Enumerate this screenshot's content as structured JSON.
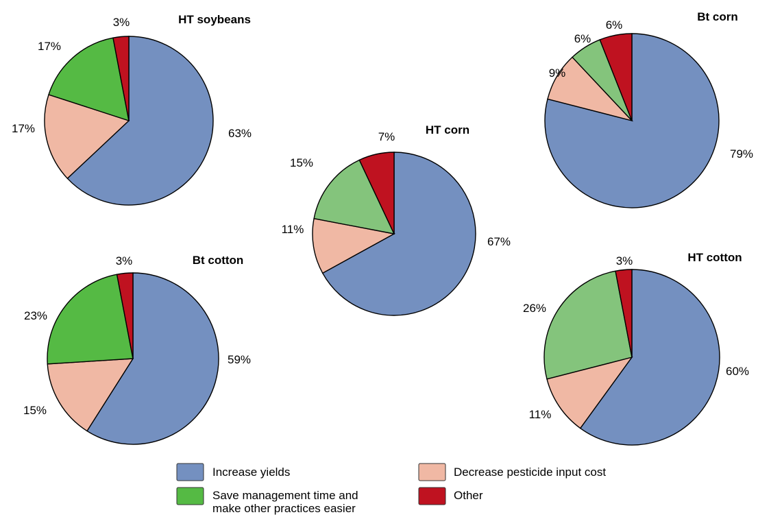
{
  "chart_data": {
    "type": "pie",
    "categories": [
      "Increase yields",
      "Decrease pesticide input cost",
      "Save management time and make other practices easier",
      "Other"
    ],
    "colors": {
      "increase_yields": "#7490c0",
      "decrease_pesticide": "#f0b8a4",
      "save_time_dark": "#55ba44",
      "save_time_light": "#84c47c",
      "other": "#bf1220"
    },
    "legend": {
      "placement": "bottom",
      "items": [
        {
          "key": "increase_yields",
          "label_lines": [
            "Increase yields"
          ]
        },
        {
          "key": "decrease_pesticide",
          "label_lines": [
            "Decrease pesticide input cost"
          ]
        },
        {
          "key": "save_time_dark",
          "label_lines": [
            "Save management time and",
            "make other practices easier"
          ]
        },
        {
          "key": "other",
          "label_lines": [
            "Other"
          ]
        }
      ]
    },
    "pies": [
      {
        "title": "HT soybeans",
        "slices": [
          {
            "key": "increase_yields",
            "value": 63,
            "label": "63%"
          },
          {
            "key": "decrease_pesticide",
            "value": 17,
            "label": "17%"
          },
          {
            "key": "save_time_dark",
            "value": 17,
            "label": "17%"
          },
          {
            "key": "other",
            "value": 3,
            "label": "3%"
          }
        ]
      },
      {
        "title": "HT corn",
        "slices": [
          {
            "key": "increase_yields",
            "value": 67,
            "label": "67%"
          },
          {
            "key": "decrease_pesticide",
            "value": 11,
            "label": "11%"
          },
          {
            "key": "save_time_light",
            "value": 15,
            "label": "15%"
          },
          {
            "key": "other",
            "value": 7,
            "label": "7%"
          }
        ]
      },
      {
        "title": "Bt corn",
        "slices": [
          {
            "key": "increase_yields",
            "value": 79,
            "label": "79%"
          },
          {
            "key": "decrease_pesticide",
            "value": 9,
            "label": "9%"
          },
          {
            "key": "save_time_light",
            "value": 6,
            "label": "6%"
          },
          {
            "key": "other",
            "value": 6,
            "label": "6%"
          }
        ]
      },
      {
        "title": "Bt cotton",
        "slices": [
          {
            "key": "increase_yields",
            "value": 59,
            "label": "59%"
          },
          {
            "key": "decrease_pesticide",
            "value": 15,
            "label": "15%"
          },
          {
            "key": "save_time_dark",
            "value": 23,
            "label": "23%"
          },
          {
            "key": "other",
            "value": 3,
            "label": "3%"
          }
        ]
      },
      {
        "title": "HT cotton",
        "slices": [
          {
            "key": "increase_yields",
            "value": 60,
            "label": "60%"
          },
          {
            "key": "decrease_pesticide",
            "value": 11,
            "label": "11%"
          },
          {
            "key": "save_time_light",
            "value": 26,
            "label": "26%"
          },
          {
            "key": "other",
            "value": 3,
            "label": "3%"
          }
        ]
      }
    ]
  }
}
